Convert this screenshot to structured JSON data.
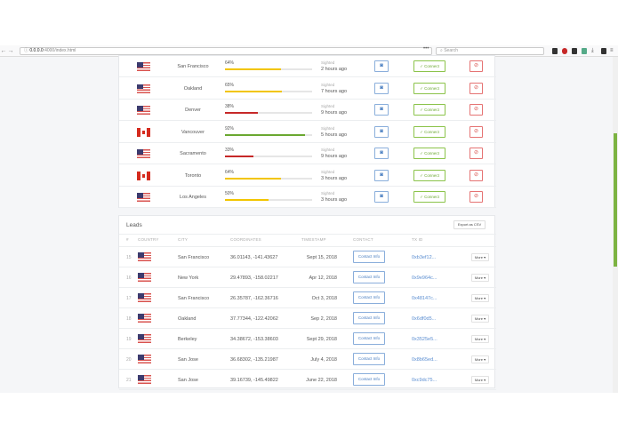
{
  "browser": {
    "url_host": "0.0.0.0",
    "url_path": ":4000/index.html",
    "search_placeholder": "Search",
    "more": "•••"
  },
  "sightings": [
    {
      "country": "us",
      "city": "San Francisco",
      "percent": 64,
      "percent_label": "64%",
      "color": "#f2c500",
      "sighted": "Sighted",
      "ago": "2 hours ago"
    },
    {
      "country": "us",
      "city": "Oakland",
      "percent": 65,
      "percent_label": "65%",
      "color": "#f2c500",
      "sighted": "Sighted",
      "ago": "7 hours ago"
    },
    {
      "country": "us",
      "city": "Denver",
      "percent": 38,
      "percent_label": "38%",
      "color": "#c62828",
      "sighted": "Sighted",
      "ago": "9 hours ago"
    },
    {
      "country": "ca",
      "city": "Vancouver",
      "percent": 92,
      "percent_label": "92%",
      "color": "#6aa830",
      "sighted": "Sighted",
      "ago": "5 hours ago"
    },
    {
      "country": "us",
      "city": "Sacramento",
      "percent": 33,
      "percent_label": "33%",
      "color": "#c62828",
      "sighted": "Sighted",
      "ago": "9 hours ago"
    },
    {
      "country": "ca",
      "city": "Toronto",
      "percent": 64,
      "percent_label": "64%",
      "color": "#f2c500",
      "sighted": "Sighted",
      "ago": "3 hours ago"
    },
    {
      "country": "us",
      "city": "Los Angeles",
      "percent": 50,
      "percent_label": "50%",
      "color": "#f2c500",
      "sighted": "Sighted",
      "ago": "3 hours ago"
    }
  ],
  "sighting_actions": {
    "connect": "✓ Connect",
    "camera_icon": "camera-icon",
    "reject_icon": "eye-slash-icon"
  },
  "leads": {
    "title": "Leads",
    "export_label": "Export as CSV",
    "columns": [
      "#",
      "COUNTRY",
      "CITY",
      "COORDINATES",
      "TIMESTAMP",
      "CONTACT",
      "TX ID"
    ],
    "contact_label": "Contact Info",
    "more_label": "More ▾",
    "rows": [
      {
        "n": "15",
        "country": "us",
        "city": "San Francisco",
        "coords": "36.01143, -141.43627",
        "ts": "Sept 15, 2018",
        "tx": "0xb3ef12..."
      },
      {
        "n": "16",
        "country": "us",
        "city": "New York",
        "coords": "29.47893, -158.02217",
        "ts": "Apr 12, 2018",
        "tx": "0x9e964c..."
      },
      {
        "n": "17",
        "country": "us",
        "city": "San Francisco",
        "coords": "26.35787, -162.36716",
        "ts": "Oct 3, 2018",
        "tx": "0x48147c..."
      },
      {
        "n": "18",
        "country": "us",
        "city": "Oakland",
        "coords": "37.77344, -122.42062",
        "ts": "Sep 2, 2018",
        "tx": "0x6df0d5..."
      },
      {
        "n": "19",
        "country": "us",
        "city": "Berkeley",
        "coords": "34.38672, -153.38603",
        "ts": "Sept 29, 2018",
        "tx": "0x3525e5..."
      },
      {
        "n": "20",
        "country": "us",
        "city": "San Jose",
        "coords": "36.68302, -135.21987",
        "ts": "July 4, 2018",
        "tx": "0x8b65ed..."
      },
      {
        "n": "21",
        "country": "us",
        "city": "San Jose",
        "coords": "39.16739, -145.49822",
        "ts": "June 22, 2018",
        "tx": "0xc9dc75..."
      }
    ]
  }
}
